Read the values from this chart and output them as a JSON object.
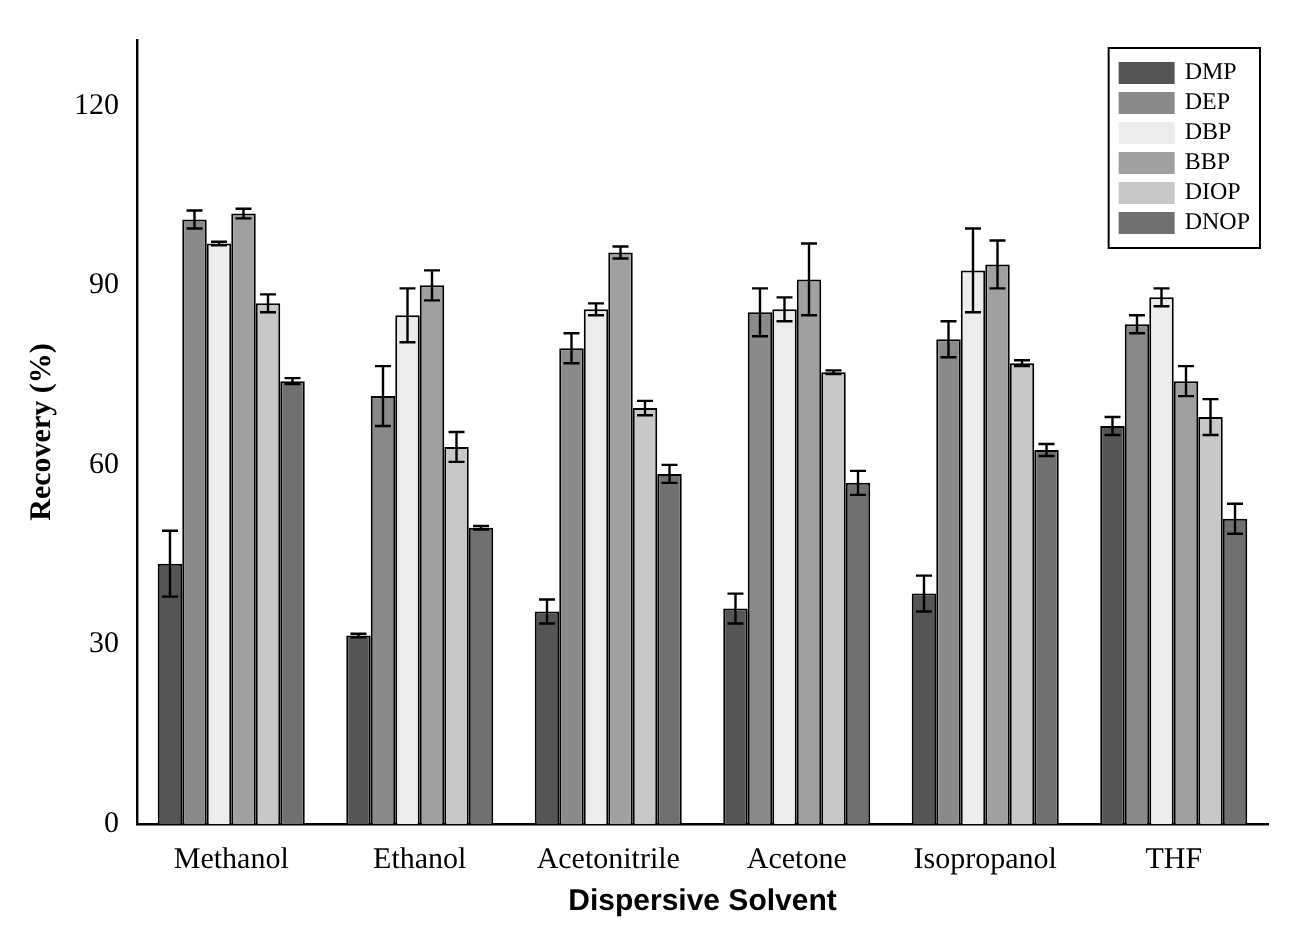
{
  "chart_data": {
    "type": "bar",
    "xlabel": "Dispersive Solvent",
    "ylabel": "Recovery (%)",
    "categories": [
      "Methanol",
      "Ethanol",
      "Acetonitrile",
      "Acetone",
      "Isopropanol",
      "THF"
    ],
    "series": [
      {
        "name": "DMP",
        "color": "#555555",
        "values": [
          43.5,
          31.5,
          35.5,
          36,
          38.5,
          66.5
        ],
        "errors": [
          5.5,
          0.3,
          2,
          2.5,
          3,
          1.5
        ]
      },
      {
        "name": "DEP",
        "color": "#8a8a8a",
        "values": [
          101,
          71.5,
          79.5,
          85.5,
          81,
          83.5
        ],
        "errors": [
          1.5,
          5,
          2.5,
          4,
          3,
          1.5
        ]
      },
      {
        "name": "DBP",
        "color": "#ececec",
        "values": [
          97,
          85,
          86,
          86,
          92.5,
          88
        ],
        "errors": [
          0.3,
          4.5,
          1,
          2,
          7,
          1.5
        ]
      },
      {
        "name": "BBP",
        "color": "#a0a0a0",
        "values": [
          102,
          90,
          95.5,
          91,
          93.5,
          74
        ],
        "errors": [
          0.8,
          2.5,
          1,
          6,
          4,
          2.5
        ]
      },
      {
        "name": "DIOP",
        "color": "#c8c8c8",
        "values": [
          87,
          63,
          69.5,
          75.5,
          77,
          68
        ],
        "errors": [
          1.5,
          2.5,
          1.2,
          0.3,
          0.5,
          3
        ]
      },
      {
        "name": "DNOP",
        "color": "#707070",
        "values": [
          74,
          49.5,
          58.5,
          57,
          62.5,
          51
        ],
        "errors": [
          0.5,
          0.3,
          1.5,
          2,
          1,
          2.5
        ]
      }
    ],
    "ylim": [
      0,
      131
    ],
    "yticks": [
      0,
      30,
      60,
      90,
      120
    ],
    "grid": false,
    "legend": "top right"
  }
}
